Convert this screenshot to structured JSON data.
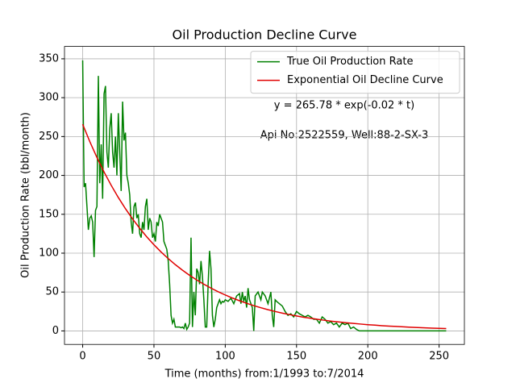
{
  "chart_data": {
    "type": "line",
    "title": "Oil Production Decline Curve",
    "xlabel": "Time (months) from:1/1993 to:7/2014",
    "ylabel": "Oil Production Rate (bbl/month)",
    "annotations": [
      "y = 265.78 * exp(-0.02 * t)",
      "Api No:2522559, Well:88-2-SX-3"
    ],
    "xlim": [
      -12.75,
      267.75
    ],
    "ylim": [
      -17.4,
      365.9
    ],
    "xticks": [
      0,
      50,
      100,
      150,
      200,
      250
    ],
    "yticks": [
      0,
      50,
      100,
      150,
      200,
      250,
      300,
      350
    ],
    "grid": true,
    "legend": "upper right",
    "series": [
      {
        "name": "True Oil Production Rate",
        "color": "#008000",
        "x": [
          0,
          1,
          2,
          3,
          4,
          5,
          6,
          7,
          8,
          9,
          10,
          11,
          12,
          13,
          14,
          15,
          16,
          17,
          18,
          19,
          20,
          21,
          22,
          23,
          24,
          25,
          26,
          27,
          28,
          29,
          30,
          31,
          32,
          33,
          34,
          35,
          36,
          37,
          38,
          39,
          40,
          41,
          42,
          43,
          44,
          45,
          46,
          47,
          48,
          49,
          50,
          51,
          52,
          53,
          54,
          55,
          56,
          57,
          58,
          59,
          60,
          61,
          62,
          63,
          64,
          65,
          66,
          67,
          68,
          69,
          70,
          71,
          72,
          73,
          74,
          75,
          76,
          77,
          78,
          79,
          80,
          81,
          82,
          83,
          84,
          85,
          86,
          87,
          88,
          89,
          90,
          91,
          92,
          93,
          94,
          95,
          96,
          97,
          98,
          99,
          100,
          102,
          104,
          106,
          108,
          110,
          111,
          112,
          113,
          114,
          115,
          116,
          117,
          118,
          119,
          120,
          121,
          123,
          125,
          126,
          128,
          130,
          132,
          133,
          134,
          135,
          136,
          138,
          140,
          142,
          144,
          146,
          148,
          150,
          152,
          154,
          156,
          158,
          160,
          162,
          164,
          166,
          168,
          170,
          172,
          174,
          176,
          178,
          180,
          182,
          184,
          186,
          188,
          190,
          192,
          194,
          200,
          220,
          240,
          255
        ],
        "values": [
          348,
          185,
          190,
          160,
          130,
          145,
          148,
          140,
          95,
          155,
          160,
          328,
          190,
          240,
          170,
          305,
          315,
          230,
          210,
          260,
          280,
          230,
          210,
          250,
          200,
          280,
          230,
          180,
          295,
          245,
          255,
          200,
          190,
          175,
          140,
          125,
          160,
          165,
          145,
          150,
          125,
          120,
          140,
          130,
          160,
          170,
          130,
          145,
          140,
          120,
          125,
          115,
          140,
          135,
          150,
          145,
          140,
          115,
          110,
          105,
          90,
          60,
          20,
          10,
          15,
          5,
          5,
          5,
          5,
          4,
          5,
          3,
          10,
          2,
          5,
          10,
          120,
          5,
          50,
          20,
          80,
          75,
          60,
          90,
          70,
          40,
          5,
          5,
          60,
          103,
          80,
          20,
          5,
          15,
          30,
          35,
          40,
          35,
          38,
          37,
          40,
          38,
          42,
          35,
          45,
          48,
          35,
          50,
          38,
          45,
          30,
          55,
          40,
          35,
          30,
          0,
          45,
          50,
          40,
          50,
          45,
          35,
          50,
          20,
          5,
          40,
          38,
          35,
          32,
          25,
          20,
          22,
          18,
          25,
          22,
          20,
          18,
          20,
          18,
          15,
          15,
          10,
          18,
          15,
          10,
          12,
          8,
          10,
          5,
          10,
          8,
          10,
          3,
          5,
          2,
          0,
          0,
          0,
          0,
          0
        ]
      },
      {
        "name": "Exponential Oil Decline Curve",
        "color": "#e00000",
        "x": [
          0,
          5,
          10,
          15,
          20,
          25,
          30,
          35,
          40,
          45,
          50,
          55,
          60,
          65,
          70,
          75,
          80,
          85,
          90,
          95,
          100,
          105,
          110,
          115,
          120,
          125,
          130,
          135,
          140,
          145,
          150,
          155,
          160,
          165,
          170,
          175,
          180,
          185,
          190,
          195,
          200,
          205,
          210,
          215,
          220,
          225,
          230,
          235,
          240,
          245,
          250,
          255
        ],
        "values": [
          265.8,
          243.5,
          223.1,
          204.4,
          187.3,
          171.6,
          157.2,
          144.0,
          132.0,
          120.9,
          110.8,
          101.5,
          93.0,
          85.2,
          78.1,
          71.5,
          65.5,
          60.1,
          55.0,
          50.4,
          46.2,
          42.3,
          38.8,
          35.5,
          32.5,
          29.8,
          27.3,
          25.0,
          22.9,
          21.0,
          19.2,
          17.6,
          16.2,
          14.8,
          13.6,
          12.4,
          11.4,
          10.4,
          9.6,
          8.8,
          8.0,
          7.4,
          6.7,
          6.2,
          5.7,
          5.2,
          4.7,
          4.3,
          4.0,
          3.6,
          3.3,
          3.0
        ]
      }
    ]
  }
}
